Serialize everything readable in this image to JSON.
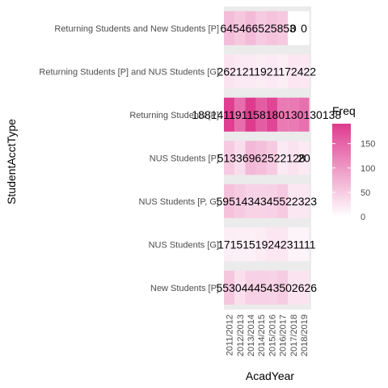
{
  "chart_data": {
    "type": "heatmap",
    "xlabel": "AcadYear",
    "ylabel": "StudentAcctType",
    "x_categories": [
      "2011/2012",
      "2012/2013",
      "2013/2014",
      "2014/2015",
      "2015/2016",
      "2016/2017",
      "2017/2018",
      "2018/2019"
    ],
    "y_categories": [
      "Returning Students and New Students [P]",
      "Returning Students [P] and NUS Students [G]",
      "Returning Students [P]",
      "NUS Students [P]",
      "NUS Students [P, G]",
      "NUS Students [G]",
      "New Students [P]"
    ],
    "values": [
      [
        64,
        54,
        66,
        52,
        58,
        53,
        0,
        0
      ],
      [
        26,
        21,
        21,
        19,
        21,
        17,
        24,
        22
      ],
      [
        188,
        141,
        191,
        158,
        180,
        130,
        130,
        138
      ],
      [
        51,
        33,
        69,
        62,
        52,
        21,
        28,
        20
      ],
      [
        59,
        51,
        43,
        43,
        45,
        52,
        23,
        23
      ],
      [
        17,
        15,
        15,
        19,
        24,
        23,
        11,
        11
      ],
      [
        55,
        30,
        44,
        45,
        43,
        50,
        26,
        26
      ]
    ],
    "cell_labels": [
      "645466525853",
      "0",
      "0",
      "2621211921172422",
      "188141191158180130130138",
      "51336962522128",
      "20",
      "5951434345522323",
      "1715151924231111",
      "5530444543502626"
    ],
    "legend": {
      "title": "Freq",
      "ticks": [
        0,
        50,
        100,
        150
      ],
      "range": [
        0,
        191
      ],
      "low_color": "#ffffff",
      "high_color": "#de3b8f"
    },
    "panel_background": "#ebebeb",
    "grid": false
  }
}
